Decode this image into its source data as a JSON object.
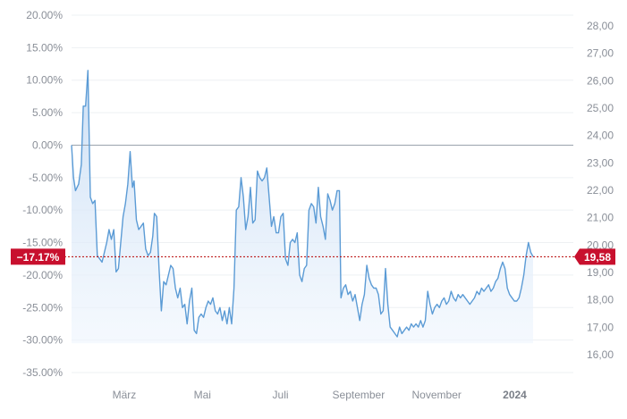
{
  "chart_data": {
    "type": "area",
    "colors": {
      "line": "#5b9bd5",
      "fill": "#dbe9f8",
      "reference": "#b80000",
      "badge": "#c8102e",
      "zero_line": "#9aa3ad"
    },
    "left_axis": {
      "unit": "%",
      "ticks": [
        "20.00%",
        "15.00%",
        "10.00%",
        "5.00%",
        "0.00%",
        "-5.00%",
        "-10.00%",
        "-15.00%",
        "-20.00%",
        "-25.00%",
        "-30.00%",
        "-35.00%"
      ],
      "tick_values": [
        20,
        15,
        10,
        5,
        0,
        -5,
        -10,
        -15,
        -20,
        -25,
        -30,
        -35
      ],
      "ylim": [
        -35,
        20
      ]
    },
    "right_axis": {
      "ticks": [
        "28,00",
        "27,00",
        "26,00",
        "25,00",
        "24,00",
        "23,00",
        "22,00",
        "21,00",
        "20,00",
        "19,00",
        "18,00",
        "17,00",
        "16,00"
      ],
      "tick_values": [
        28,
        27,
        26,
        25,
        24,
        23,
        22,
        21,
        20,
        19,
        18,
        17,
        16
      ]
    },
    "x_axis": {
      "labels": [
        "März",
        "Mai",
        "Juli",
        "September",
        "November",
        "2024"
      ],
      "bold_labels": [
        "2024"
      ],
      "month_index": [
        1,
        3,
        5,
        7,
        9,
        11
      ],
      "xlim": [
        0,
        12.85
      ]
    },
    "current": {
      "percent_label": "−17.17%",
      "percent_value": -17.17,
      "price_label": "19,58"
    },
    "series": [
      {
        "values": [
          [
            0.0,
            0.0
          ],
          [
            0.05,
            -5.0
          ],
          [
            0.1,
            -7.0
          ],
          [
            0.18,
            -6.0
          ],
          [
            0.25,
            -3.0
          ],
          [
            0.3,
            6.0
          ],
          [
            0.36,
            6.0
          ],
          [
            0.42,
            11.5
          ],
          [
            0.48,
            -8.0
          ],
          [
            0.54,
            -9.0
          ],
          [
            0.6,
            -8.5
          ],
          [
            0.66,
            -17.0
          ],
          [
            0.72,
            -17.5
          ],
          [
            0.78,
            -18.0
          ],
          [
            0.84,
            -16.5
          ],
          [
            0.9,
            -15.0
          ],
          [
            0.96,
            -13.0
          ],
          [
            1.02,
            -14.5
          ],
          [
            1.08,
            -13.0
          ],
          [
            1.14,
            -19.5
          ],
          [
            1.2,
            -19.0
          ],
          [
            1.26,
            -15.0
          ],
          [
            1.32,
            -11.0
          ],
          [
            1.38,
            -9.0
          ],
          [
            1.44,
            -6.0
          ],
          [
            1.5,
            -1.0
          ],
          [
            1.56,
            -6.5
          ],
          [
            1.6,
            -5.5
          ],
          [
            1.66,
            -11.5
          ],
          [
            1.72,
            -13.0
          ],
          [
            1.78,
            -12.5
          ],
          [
            1.84,
            -12.0
          ],
          [
            1.9,
            -16.0
          ],
          [
            1.96,
            -17.0
          ],
          [
            2.02,
            -16.5
          ],
          [
            2.08,
            -14.0
          ],
          [
            2.12,
            -10.5
          ],
          [
            2.18,
            -11.0
          ],
          [
            2.24,
            -19.0
          ],
          [
            2.3,
            -25.5
          ],
          [
            2.36,
            -21.0
          ],
          [
            2.42,
            -21.5
          ],
          [
            2.48,
            -20.0
          ],
          [
            2.54,
            -18.5
          ],
          [
            2.6,
            -19.0
          ],
          [
            2.66,
            -22.0
          ],
          [
            2.72,
            -23.5
          ],
          [
            2.78,
            -22.0
          ],
          [
            2.84,
            -25.0
          ],
          [
            2.9,
            -24.5
          ],
          [
            2.96,
            -27.5
          ],
          [
            3.02,
            -24.0
          ],
          [
            3.08,
            -22.0
          ],
          [
            3.14,
            -28.5
          ],
          [
            3.2,
            -29.0
          ],
          [
            3.26,
            -26.5
          ],
          [
            3.32,
            -26.0
          ],
          [
            3.38,
            -26.5
          ],
          [
            3.44,
            -25.0
          ],
          [
            3.5,
            -24.0
          ],
          [
            3.56,
            -24.5
          ],
          [
            3.62,
            -23.5
          ],
          [
            3.68,
            -25.5
          ],
          [
            3.74,
            -26.0
          ],
          [
            3.8,
            -25.0
          ],
          [
            3.86,
            -27.0
          ],
          [
            3.92,
            -25.5
          ],
          [
            3.98,
            -27.5
          ],
          [
            4.04,
            -25.0
          ],
          [
            4.1,
            -27.5
          ],
          [
            4.16,
            -22.0
          ],
          [
            4.22,
            -10.0
          ],
          [
            4.28,
            -9.5
          ],
          [
            4.34,
            -5.0
          ],
          [
            4.4,
            -8.0
          ],
          [
            4.46,
            -13.0
          ],
          [
            4.52,
            -11.0
          ],
          [
            4.58,
            -6.5
          ],
          [
            4.64,
            -12.0
          ],
          [
            4.7,
            -11.5
          ],
          [
            4.76,
            -4.0
          ],
          [
            4.82,
            -5.0
          ],
          [
            4.88,
            -5.5
          ],
          [
            4.94,
            -5.0
          ],
          [
            5.0,
            -3.5
          ],
          [
            5.06,
            -8.0
          ],
          [
            5.12,
            -12.5
          ],
          [
            5.18,
            -11.0
          ],
          [
            5.24,
            -13.5
          ],
          [
            5.3,
            -13.5
          ],
          [
            5.36,
            -11.0
          ],
          [
            5.42,
            -10.5
          ],
          [
            5.48,
            -17.5
          ],
          [
            5.54,
            -18.5
          ],
          [
            5.6,
            -15.0
          ],
          [
            5.66,
            -14.5
          ],
          [
            5.72,
            -15.0
          ],
          [
            5.78,
            -13.5
          ],
          [
            5.84,
            -20.0
          ],
          [
            5.9,
            -21.0
          ],
          [
            5.96,
            -19.0
          ],
          [
            6.02,
            -18.5
          ],
          [
            6.08,
            -10.0
          ],
          [
            6.14,
            -9.0
          ],
          [
            6.2,
            -9.5
          ],
          [
            6.26,
            -12.0
          ],
          [
            6.32,
            -6.5
          ],
          [
            6.38,
            -11.0
          ],
          [
            6.44,
            -12.5
          ],
          [
            6.5,
            -14.5
          ],
          [
            6.56,
            -7.5
          ],
          [
            6.62,
            -8.5
          ],
          [
            6.68,
            -10.0
          ],
          [
            6.74,
            -9.0
          ],
          [
            6.8,
            -7.0
          ],
          [
            6.86,
            -7.0
          ],
          [
            6.9,
            -23.5
          ],
          [
            6.96,
            -22.0
          ],
          [
            7.02,
            -21.5
          ],
          [
            7.08,
            -23.0
          ],
          [
            7.14,
            -22.5
          ],
          [
            7.2,
            -24.0
          ],
          [
            7.26,
            -23.0
          ],
          [
            7.32,
            -25.0
          ],
          [
            7.38,
            -27.0
          ],
          [
            7.44,
            -24.5
          ],
          [
            7.5,
            -23.0
          ],
          [
            7.56,
            -18.5
          ],
          [
            7.62,
            -20.5
          ],
          [
            7.68,
            -21.5
          ],
          [
            7.74,
            -22.0
          ],
          [
            7.8,
            -22.0
          ],
          [
            7.86,
            -23.0
          ],
          [
            7.92,
            -26.0
          ],
          [
            7.98,
            -25.5
          ],
          [
            8.04,
            -19.0
          ],
          [
            8.1,
            -24.5
          ],
          [
            8.16,
            -28.0
          ],
          [
            8.22,
            -28.5
          ],
          [
            8.28,
            -29.0
          ],
          [
            8.34,
            -29.5
          ],
          [
            8.4,
            -28.0
          ],
          [
            8.46,
            -29.0
          ],
          [
            8.52,
            -28.5
          ],
          [
            8.58,
            -28.0
          ],
          [
            8.64,
            -28.5
          ],
          [
            8.7,
            -27.5
          ],
          [
            8.76,
            -28.0
          ],
          [
            8.82,
            -27.5
          ],
          [
            8.88,
            -28.0
          ],
          [
            8.94,
            -27.0
          ],
          [
            9.0,
            -28.0
          ],
          [
            9.06,
            -27.0
          ],
          [
            9.12,
            -22.5
          ],
          [
            9.18,
            -24.5
          ],
          [
            9.24,
            -26.0
          ],
          [
            9.3,
            -25.0
          ],
          [
            9.36,
            -24.5
          ],
          [
            9.42,
            -25.0
          ],
          [
            9.48,
            -24.0
          ],
          [
            9.54,
            -23.5
          ],
          [
            9.6,
            -24.5
          ],
          [
            9.66,
            -24.0
          ],
          [
            9.72,
            -22.5
          ],
          [
            9.78,
            -23.5
          ],
          [
            9.84,
            -24.0
          ],
          [
            9.9,
            -23.0
          ],
          [
            9.96,
            -23.5
          ],
          [
            10.02,
            -23.0
          ],
          [
            10.08,
            -23.5
          ],
          [
            10.14,
            -24.0
          ],
          [
            10.2,
            -24.5
          ],
          [
            10.26,
            -24.0
          ],
          [
            10.32,
            -23.5
          ],
          [
            10.38,
            -22.5
          ],
          [
            10.44,
            -23.0
          ],
          [
            10.5,
            -22.0
          ],
          [
            10.56,
            -22.5
          ],
          [
            10.62,
            -22.0
          ],
          [
            10.68,
            -21.5
          ],
          [
            10.74,
            -22.5
          ],
          [
            10.8,
            -22.0
          ],
          [
            10.86,
            -21.0
          ],
          [
            10.92,
            -20.5
          ],
          [
            10.98,
            -19.0
          ],
          [
            11.04,
            -18.0
          ],
          [
            11.1,
            -19.0
          ],
          [
            11.16,
            -22.0
          ],
          [
            11.22,
            -23.0
          ],
          [
            11.28,
            -23.5
          ],
          [
            11.34,
            -24.0
          ],
          [
            11.4,
            -24.0
          ],
          [
            11.46,
            -23.5
          ],
          [
            11.52,
            -22.0
          ],
          [
            11.58,
            -20.0
          ],
          [
            11.64,
            -17.0
          ],
          [
            11.7,
            -15.0
          ],
          [
            11.76,
            -16.5
          ],
          [
            11.82,
            -17.17
          ]
        ]
      }
    ]
  }
}
